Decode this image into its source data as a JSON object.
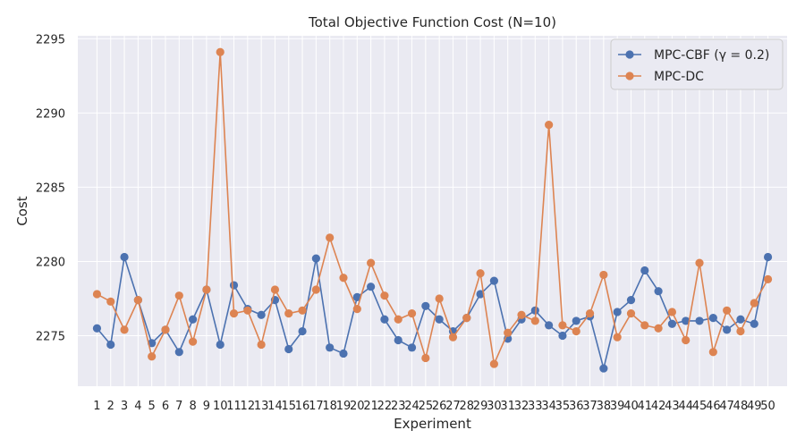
{
  "chart_data": {
    "type": "line",
    "title": "Total Objective Function Cost (N=10)",
    "xlabel": "Experiment",
    "ylabel": "Cost",
    "x": [
      1,
      2,
      3,
      4,
      5,
      6,
      7,
      8,
      9,
      10,
      11,
      12,
      13,
      14,
      15,
      16,
      17,
      18,
      19,
      20,
      21,
      22,
      23,
      24,
      25,
      26,
      27,
      28,
      29,
      30,
      31,
      32,
      33,
      34,
      35,
      36,
      37,
      38,
      39,
      40,
      41,
      42,
      43,
      44,
      45,
      46,
      47,
      48,
      49,
      50
    ],
    "yticks": [
      2275,
      2280,
      2285,
      2290,
      2295
    ],
    "ylim": [
      2271.6,
      2295.2
    ],
    "grid": true,
    "legend_position": "top-right",
    "series": [
      {
        "name": "MPC-CBF (γ = 0.2)",
        "color": "#4c72b0",
        "values": [
          2275.5,
          2274.4,
          2280.3,
          2277.4,
          2274.5,
          2275.4,
          2273.9,
          2276.1,
          2278.1,
          2274.4,
          2278.4,
          2276.8,
          2276.4,
          2277.4,
          2274.1,
          2275.3,
          2280.2,
          2274.2,
          2273.8,
          2277.6,
          2278.3,
          2276.1,
          2274.7,
          2274.2,
          2277.0,
          2276.1,
          2275.3,
          2276.2,
          2277.8,
          2278.7,
          2274.8,
          2276.1,
          2276.7,
          2275.7,
          2275.0,
          2276.0,
          2276.3,
          2272.8,
          2276.6,
          2277.4,
          2279.4,
          2278.0,
          2275.8,
          2276.0,
          2276.0,
          2276.2,
          2275.4,
          2276.1,
          2275.8,
          2280.3
        ]
      },
      {
        "name": "MPC-DC",
        "color": "#dd8452",
        "values": [
          2277.8,
          2277.3,
          2275.4,
          2277.4,
          2273.6,
          2275.4,
          2277.7,
          2274.6,
          2278.1,
          2294.1,
          2276.5,
          2276.7,
          2274.4,
          2278.1,
          2276.5,
          2276.7,
          2278.1,
          2281.6,
          2278.9,
          2276.8,
          2279.9,
          2277.7,
          2276.1,
          2276.5,
          2273.5,
          2277.5,
          2274.9,
          2276.2,
          2279.2,
          2273.1,
          2275.2,
          2276.4,
          2276.0,
          2289.2,
          2275.7,
          2275.3,
          2276.5,
          2279.1,
          2274.9,
          2276.5,
          2275.7,
          2275.5,
          2276.6,
          2274.7,
          2279.9,
          2273.9,
          2276.7,
          2275.3,
          2277.2,
          2278.8
        ]
      }
    ]
  }
}
